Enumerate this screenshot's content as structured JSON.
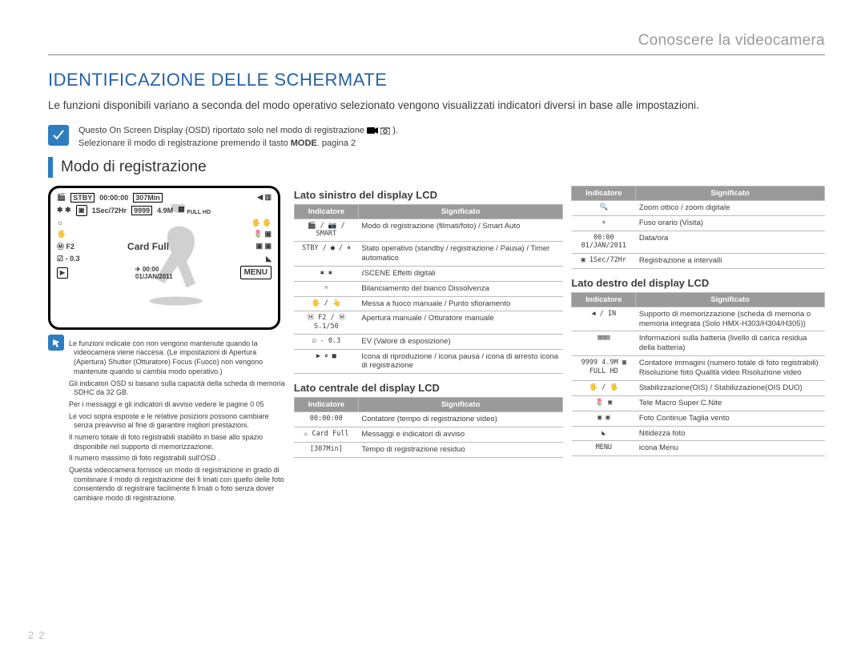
{
  "header": {
    "right": "Conoscere la videocamera"
  },
  "title": "IDENTIFICAZIONE DELLE SCHERMATE",
  "intro": "Le funzioni disponibili variano a seconda del modo operativo selezionato  vengono visualizzati indicatori diversi in base alle impostazioni.",
  "note1": "Questo On Screen Display (OSD)  riportato solo nel modo di registrazione",
  "note1b": ").",
  "note2": "Selezionare il modo di registrazione premendo il tasto ",
  "note2b": "MODE",
  "note2c": ". pagina 2",
  "sectionTitle": "Modo di registrazione",
  "lcd": {
    "stby": "STBY",
    "time": "00:00:00",
    "rem": "307Min",
    "interval": "1Sec/72Hr",
    "count": "9999",
    "res": "4.9M",
    "mf": "F2",
    "ev": "- 0.3",
    "cardfull": "Card Full",
    "datetime": "00:00",
    "date": "01/JAN/2011",
    "menu": "MENU"
  },
  "notesL": [
    "Le funzioni indicate con   non vengono mantenute quando la videocamera viene riaccesa. (Le impostazioni di Apertura (Apertura)  Shutter (Otturatore)  Focus (Fuoco) non vengono mantenute quando si cambia modo operativo.)",
    "Gli indicatori OSD si basano sulla capacità della scheda di memoria SDHC da 32 GB.",
    "Per i messaggi e gli indicatori di avviso  vedere le pagine  0   05",
    "Le voci sopra esposte e le relative posizioni possono cambiare senza preavviso al fine di garantire migliori prestazioni.",
    "Il numero totale di foto registrabili  stabilito in base allo spazio disponibile nel supporto di memorizzazione.",
    "Il numero massimo di foto registrabili sull'OSD       .",
    "Questa videocamera fornisce un modo di registrazione in grado di combinare il modo di registrazione dei fi lmati con quello delle foto  consentendo di registrare facilmente fi lmati o foto senza dover cambiare modo di registrazione."
  ],
  "headers": {
    "ind": "Indicatore",
    "sig": "Significato"
  },
  "leftTitle": "Lato sinistro del display LCD",
  "leftRows": [
    {
      "i": "🎬 / 📷 / SMART",
      "t": "Modo di registrazione (filmati/foto) / Smart Auto"
    },
    {
      "i": "STBY / ● / ⏸",
      "t": "Stato operativo (standby / registrazione / Pausa) / Timer automatico"
    },
    {
      "i": "✱ ✱",
      "t": "ⅈSCENE  Effetti digitali"
    },
    {
      "i": "☼",
      "t": "Bilanciamento del bianco  Dissolvenza"
    },
    {
      "i": "🖐 / 👆",
      "t": "Messa a fuoco manuale  /  Punto sfioramento"
    },
    {
      "i": "Ⓜ F2 / Ⓜ S.1/50",
      "t": "Apertura manuale  / Otturatore manuale"
    },
    {
      "i": "☑ - 0.3",
      "t": "EV (Valore di esposizione)"
    },
    {
      "i": "▶ ⏸ ■",
      "t": "Icona di riproduzione / icona pausa / icona di arresto  icona di registrazione"
    }
  ],
  "centerTitle": "Lato centrale del display LCD",
  "centerRows": [
    {
      "i": "00:00:00",
      "t": "Contatore (tempo di registrazione video)"
    },
    {
      "i": "⚠ Card Full",
      "t": "Messaggi e indicatori di avviso"
    },
    {
      "i": "[307Min]",
      "t": "Tempo di registrazione residuo"
    }
  ],
  "rightTop": [
    {
      "i": "🔍",
      "t": "Zoom ottico / zoom digitale"
    },
    {
      "i": "✈",
      "t": "Fuso orario (Visita)"
    },
    {
      "i": "00:00 01/JAN/2011",
      "t": "Data/ora"
    },
    {
      "i": "▣ 1Sec/72Hr",
      "t": "Registrazione a intervalli"
    }
  ],
  "rightTitle": "Lato destro del display LCD",
  "rightRows": [
    {
      "i": "◀ / IN",
      "t": "Supporto di memorizzazione (scheda di memoria o memoria integrata (Solo HMX-H303/H304/H305))"
    },
    {
      "i": "▥▥▥",
      "t": "Informazioni sulla batteria (livello di carica residua della batteria)"
    },
    {
      "i": "9999 4.9M  ▦ FULL HD",
      "t": "Contatore immagini (numero totale di foto registrabili)  Risoluzione foto  Qualità video  Risoluzione video"
    },
    {
      "i": "🖐 / 🖐",
      "t": "Stabilizzazione(OIS) / Stabilizzazione(OIS DUO)"
    },
    {
      "i": "🌷 ▣",
      "t": "Tele Macro   Super C.Nite"
    },
    {
      "i": "▣ ▣",
      "t": "Foto Continue  Taglia vento"
    },
    {
      "i": "◣",
      "t": "Nitidezza foto"
    },
    {
      "i": "MENU",
      "t": "icona Menu"
    }
  ],
  "pageNum": "22"
}
